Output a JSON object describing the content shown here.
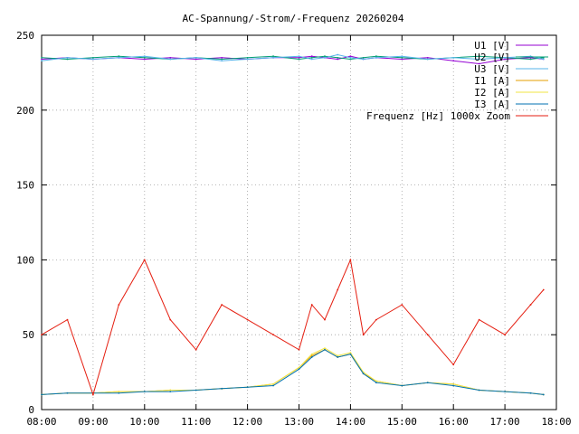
{
  "chart_data": {
    "type": "line",
    "title": "AC-Spannung/-Strom/-Frequenz 20260204",
    "xlabel": "",
    "ylabel": "",
    "xlim": [
      "08:00",
      "18:00"
    ],
    "ylim": [
      0,
      250
    ],
    "x_ticks": [
      "08:00",
      "09:00",
      "10:00",
      "11:00",
      "12:00",
      "13:00",
      "14:00",
      "15:00",
      "16:00",
      "17:00",
      "18:00"
    ],
    "y_ticks": [
      0,
      50,
      100,
      150,
      200,
      250
    ],
    "grid": true,
    "legend_position": "top-right",
    "x": [
      "08:00",
      "08:30",
      "09:00",
      "09:30",
      "10:00",
      "10:30",
      "11:00",
      "11:30",
      "12:00",
      "12:30",
      "13:00",
      "13:15",
      "13:30",
      "13:45",
      "14:00",
      "14:15",
      "14:30",
      "15:00",
      "15:30",
      "16:00",
      "16:30",
      "17:00",
      "17:30",
      "17:45"
    ],
    "series": [
      {
        "name": "U1 [V]",
        "color": "#9400d3",
        "values": [
          234,
          235,
          234,
          235,
          234,
          235,
          234,
          235,
          234,
          235,
          235,
          236,
          235,
          234,
          236,
          234,
          235,
          234,
          235,
          233,
          231,
          234,
          235,
          234
        ]
      },
      {
        "name": "U2 [V]",
        "color": "#009e73",
        "values": [
          235,
          234,
          235,
          236,
          235,
          234,
          235,
          234,
          235,
          236,
          234,
          235,
          236,
          235,
          234,
          235,
          236,
          235,
          234,
          235,
          236,
          235,
          234,
          235
        ]
      },
      {
        "name": "U3 [V]",
        "color": "#56b4e9",
        "values": [
          233,
          235,
          234,
          235,
          236,
          234,
          235,
          233,
          234,
          235,
          236,
          234,
          235,
          237,
          235,
          234,
          235,
          236,
          234,
          235,
          234,
          235,
          236,
          234
        ]
      },
      {
        "name": "I1 [A]",
        "color": "#e69f00",
        "values": [
          10,
          11,
          11,
          12,
          12,
          13,
          13,
          14,
          15,
          17,
          28,
          36,
          40,
          35,
          37,
          24,
          19,
          16,
          18,
          17,
          13,
          12,
          11,
          10
        ]
      },
      {
        "name": "I2 [A]",
        "color": "#f0e442",
        "values": [
          10,
          11,
          11,
          12,
          12,
          13,
          13,
          14,
          15,
          17,
          28,
          37,
          41,
          36,
          38,
          25,
          19,
          16,
          18,
          17,
          13,
          12,
          11,
          10
        ]
      },
      {
        "name": "I3 [A]",
        "color": "#0072b2",
        "values": [
          10,
          11,
          11,
          11,
          12,
          12,
          13,
          14,
          15,
          16,
          27,
          35,
          40,
          35,
          37,
          24,
          18,
          16,
          18,
          16,
          13,
          12,
          11,
          10
        ]
      },
      {
        "name": "Frequenz [Hz] 1000x Zoom",
        "color": "#e51e10",
        "values": [
          50,
          60,
          10,
          70,
          100,
          60,
          40,
          70,
          60,
          50,
          40,
          70,
          60,
          80,
          100,
          50,
          60,
          70,
          50,
          30,
          60,
          50,
          70,
          80
        ]
      }
    ]
  }
}
